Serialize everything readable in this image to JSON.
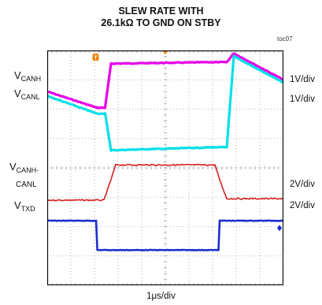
{
  "title_line1": "SLEW RATE WITH",
  "title_line2": "26.1kΩ TO GND ON STBY",
  "figure_id": "toc07",
  "labels": {
    "canh": {
      "main": "V",
      "sub": "CANH"
    },
    "canl": {
      "main": "V",
      "sub": "CANL"
    },
    "canh_canl_line1": {
      "main": "V",
      "sub": "CANH-"
    },
    "canh_canl_line2": "CANL",
    "txd": {
      "main": "V",
      "sub": "TXD"
    }
  },
  "scales": {
    "canh": "1V/div",
    "canl": "1V/div",
    "canh_canl": "2V/div",
    "txd": "2V/div",
    "time": "1μs/div"
  },
  "trigger_marker": "T",
  "colors": {
    "canh": "#e600e6",
    "canl": "#00e0e8",
    "canh_canl": "#d42020",
    "txd": "#1a2fd0",
    "trigger": "#f08000",
    "grid": "#a0a0a0"
  },
  "chart_data": {
    "type": "line",
    "title": "SLEW RATE WITH 26.1kΩ TO GND ON STBY",
    "xlabel": "1μs/div",
    "x_divisions": 10,
    "y_divisions": 8,
    "grid": true,
    "series": [
      {
        "name": "CANH",
        "scale": "1V/div",
        "points": [
          [
            0,
            6.6
          ],
          [
            2.1,
            6.05
          ],
          [
            2.45,
            6.05
          ],
          [
            2.7,
            7.55
          ],
          [
            7.0,
            7.6
          ],
          [
            7.6,
            7.6
          ],
          [
            7.9,
            7.9
          ],
          [
            10,
            7.0
          ]
        ]
      },
      {
        "name": "CANL",
        "scale": "1V/div",
        "points": [
          [
            0,
            6.45
          ],
          [
            2.1,
            5.85
          ],
          [
            2.45,
            5.85
          ],
          [
            2.7,
            4.6
          ],
          [
            7.0,
            4.7
          ],
          [
            7.6,
            4.7
          ],
          [
            7.9,
            7.8
          ],
          [
            10,
            6.9
          ]
        ]
      },
      {
        "name": "CANH-CANL",
        "scale": "2V/div",
        "points": [
          [
            0,
            2.9
          ],
          [
            2.4,
            2.9
          ],
          [
            2.7,
            3.6
          ],
          [
            2.9,
            4.1
          ],
          [
            7.1,
            4.1
          ],
          [
            7.3,
            3.6
          ],
          [
            7.6,
            2.95
          ],
          [
            10,
            2.95
          ]
        ]
      },
      {
        "name": "TXD",
        "scale": "2V/div",
        "points": [
          [
            0,
            2.2
          ],
          [
            2.07,
            2.2
          ],
          [
            2.12,
            1.2
          ],
          [
            7.25,
            1.2
          ],
          [
            7.3,
            2.2
          ],
          [
            10,
            2.2
          ]
        ]
      }
    ]
  }
}
